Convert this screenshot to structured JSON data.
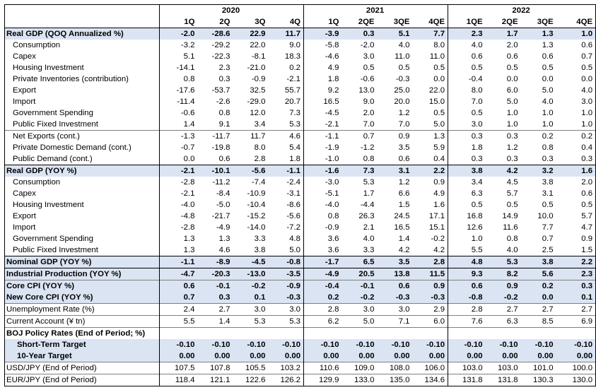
{
  "years": [
    "2020",
    "2021",
    "2022"
  ],
  "quarters": [
    [
      "1Q",
      "2Q",
      "3Q",
      "4Q"
    ],
    [
      "1Q",
      "2QE",
      "3QE",
      "4QE"
    ],
    [
      "1QE",
      "2QE",
      "3QE",
      "4QE"
    ]
  ],
  "groups": [
    {
      "id": "qoq",
      "rows": [
        {
          "label": "Real GDP (QOQ Annualized %)",
          "style": "bold-hl",
          "values": [
            "-2.0",
            "-28.6",
            "22.9",
            "11.7",
            "-3.9",
            "0.3",
            "5.1",
            "7.7",
            "2.3",
            "1.7",
            "1.3",
            "1.0"
          ]
        },
        {
          "label": "Consumption",
          "style": "indent",
          "values": [
            "-3.2",
            "-29.2",
            "22.0",
            "9.0",
            "-5.8",
            "-2.0",
            "4.0",
            "8.0",
            "4.0",
            "2.0",
            "1.3",
            "0.6"
          ]
        },
        {
          "label": "Capex",
          "style": "indent",
          "values": [
            "5.1",
            "-22.3",
            "-8.1",
            "18.3",
            "-4.6",
            "3.0",
            "11.0",
            "11.0",
            "0.6",
            "0.6",
            "0.6",
            "0.7"
          ]
        },
        {
          "label": "Housing Investment",
          "style": "indent",
          "values": [
            "-14.1",
            "2.3",
            "-21.0",
            "0.2",
            "4.9",
            "0.5",
            "0.5",
            "0.5",
            "0.5",
            "0.5",
            "0.5",
            "0.5"
          ]
        },
        {
          "label": "Private Inventories (contribution)",
          "style": "indent",
          "values": [
            "0.8",
            "0.3",
            "-0.9",
            "-2.1",
            "1.8",
            "-0.6",
            "-0.3",
            "0.0",
            "-0.4",
            "0.0",
            "0.0",
            "0.0"
          ]
        },
        {
          "label": "Export",
          "style": "indent",
          "values": [
            "-17.6",
            "-53.7",
            "32.5",
            "55.7",
            "9.2",
            "13.0",
            "25.0",
            "22.0",
            "8.0",
            "6.0",
            "5.0",
            "4.0"
          ]
        },
        {
          "label": "Import",
          "style": "indent",
          "values": [
            "-11.4",
            "-2.6",
            "-29.0",
            "20.7",
            "16.5",
            "9.0",
            "20.0",
            "15.0",
            "7.0",
            "5.0",
            "4.0",
            "3.0"
          ]
        },
        {
          "label": "Government Spending",
          "style": "indent",
          "values": [
            "-0.6",
            "0.8",
            "12.0",
            "7.3",
            "-4.5",
            "2.0",
            "1.2",
            "0.5",
            "0.5",
            "1.0",
            "1.0",
            "1.0"
          ]
        },
        {
          "label": "Public Fixed Investment",
          "style": "indent",
          "values": [
            "1.4",
            "9.1",
            "3.4",
            "5.3",
            "-2.1",
            "7.0",
            "7.0",
            "5.0",
            "3.0",
            "1.0",
            "1.0",
            "1.0"
          ]
        }
      ]
    },
    {
      "id": "contrib",
      "rows": [
        {
          "label": "Net Exports (cont.)",
          "style": "indent",
          "values": [
            "-1.3",
            "-11.7",
            "11.7",
            "4.6",
            "-1.1",
            "0.7",
            "0.9",
            "1.3",
            "0.3",
            "0.3",
            "0.2",
            "0.2"
          ]
        },
        {
          "label": "Private Domestic Demand (cont.)",
          "style": "indent",
          "values": [
            "-0.7",
            "-19.8",
            "8.0",
            "5.4",
            "-1.9",
            "-1.2",
            "3.5",
            "5.9",
            "1.8",
            "1.2",
            "0.8",
            "0.4"
          ]
        },
        {
          "label": "Public Demand (cont.)",
          "style": "indent",
          "values": [
            "0.0",
            "0.6",
            "2.8",
            "1.8",
            "-1.0",
            "0.8",
            "0.6",
            "0.4",
            "0.3",
            "0.3",
            "0.3",
            "0.3"
          ]
        }
      ]
    },
    {
      "id": "yoy",
      "rows": [
        {
          "label": "Real GDP (YOY %)",
          "style": "bold-hl",
          "values": [
            "-2.1",
            "-10.1",
            "-5.6",
            "-1.1",
            "-1.6",
            "7.3",
            "3.1",
            "2.2",
            "3.8",
            "4.2",
            "3.2",
            "1.6"
          ]
        },
        {
          "label": "Consumption",
          "style": "indent",
          "values": [
            "-2.8",
            "-11.2",
            "-7.4",
            "-2.4",
            "-3.0",
            "5.3",
            "1.2",
            "0.9",
            "3.4",
            "4.5",
            "3.8",
            "2.0"
          ]
        },
        {
          "label": "Capex",
          "style": "indent",
          "values": [
            "-2.1",
            "-8.4",
            "-10.9",
            "-3.1",
            "-5.1",
            "1.7",
            "6.6",
            "4.9",
            "6.3",
            "5.7",
            "3.1",
            "0.6"
          ]
        },
        {
          "label": "Housing Investment",
          "style": "indent",
          "values": [
            "-4.0",
            "-5.0",
            "-10.4",
            "-8.6",
            "-4.0",
            "-4.4",
            "1.5",
            "1.6",
            "0.5",
            "0.5",
            "0.5",
            "0.5"
          ]
        },
        {
          "label": "Export",
          "style": "indent",
          "values": [
            "-4.8",
            "-21.7",
            "-15.2",
            "-5.6",
            "0.8",
            "26.3",
            "24.5",
            "17.1",
            "16.8",
            "14.9",
            "10.0",
            "5.7"
          ]
        },
        {
          "label": "Import",
          "style": "indent",
          "values": [
            "-2.8",
            "-4.9",
            "-14.0",
            "-7.2",
            "-0.9",
            "2.1",
            "16.5",
            "15.1",
            "12.6",
            "11.6",
            "7.7",
            "4.7"
          ]
        },
        {
          "label": "Government Spending",
          "style": "indent",
          "values": [
            "1.3",
            "1.3",
            "3.3",
            "4.8",
            "3.6",
            "4.0",
            "1.4",
            "-0.2",
            "1.0",
            "0.8",
            "0.7",
            "0.9"
          ]
        },
        {
          "label": "Public Fixed Investment",
          "style": "indent",
          "values": [
            "1.3",
            "4.6",
            "3.8",
            "5.0",
            "3.6",
            "3.3",
            "4.2",
            "4.2",
            "5.5",
            "4.0",
            "2.5",
            "1.5"
          ]
        }
      ]
    },
    {
      "id": "nominal",
      "rows": [
        {
          "label": "Nominal GDP (YOY %)",
          "style": "bold-hl",
          "values": [
            "-1.1",
            "-8.9",
            "-4.5",
            "-0.8",
            "-1.7",
            "6.5",
            "3.5",
            "2.8",
            "4.8",
            "5.3",
            "3.8",
            "2.2"
          ]
        }
      ]
    },
    {
      "id": "ip",
      "rows": [
        {
          "label": "Industrial Production (YOY %)",
          "style": "bold-hl",
          "values": [
            "-4.7",
            "-20.3",
            "-13.0",
            "-3.5",
            "-4.9",
            "20.5",
            "13.8",
            "11.5",
            "9.3",
            "8.2",
            "5.6",
            "2.3"
          ]
        }
      ]
    },
    {
      "id": "cpi",
      "rows": [
        {
          "label": "Core CPI (YOY %)",
          "style": "bold-hl",
          "values": [
            "0.6",
            "-0.1",
            "-0.2",
            "-0.9",
            "-0.4",
            "-0.1",
            "0.6",
            "0.9",
            "0.6",
            "0.9",
            "0.2",
            "0.3"
          ]
        },
        {
          "label": "New Core CPI (YOY %)",
          "style": "bold-hl",
          "values": [
            "0.7",
            "0.3",
            "0.1",
            "-0.3",
            "0.2",
            "-0.2",
            "-0.3",
            "-0.3",
            "-0.8",
            "-0.2",
            "0.0",
            "0.1"
          ]
        }
      ]
    },
    {
      "id": "unemp",
      "rows": [
        {
          "label": "Unemployment Rate (%)",
          "style": "plain",
          "values": [
            "2.4",
            "2.7",
            "3.0",
            "3.0",
            "2.8",
            "3.0",
            "3.0",
            "2.9",
            "2.8",
            "2.7",
            "2.7",
            "2.7"
          ]
        }
      ]
    },
    {
      "id": "ca",
      "rows": [
        {
          "label": "Current Account (¥ tn)",
          "style": "plain",
          "values": [
            "5.5",
            "1.4",
            "5.3",
            "5.3",
            "6.2",
            "5.0",
            "7.1",
            "6.0",
            "7.6",
            "6.3",
            "8.5",
            "6.9"
          ]
        }
      ]
    },
    {
      "id": "boj",
      "rows": [
        {
          "label": "BOJ Policy Rates (End of Period; %)",
          "style": "bold-title",
          "values": [
            "",
            "",
            "",
            "",
            "",
            "",
            "",
            "",
            "",
            "",
            "",
            ""
          ]
        },
        {
          "label": "Short-Term Target",
          "style": "bold-hl-indent",
          "values": [
            "-0.10",
            "-0.10",
            "-0.10",
            "-0.10",
            "-0.10",
            "-0.10",
            "-0.10",
            "-0.10",
            "-0.10",
            "-0.10",
            "-0.10",
            "-0.10"
          ]
        },
        {
          "label": "10-Year Target",
          "style": "bold-hl-indent",
          "values": [
            "0.00",
            "0.00",
            "0.00",
            "0.00",
            "0.00",
            "0.00",
            "0.00",
            "0.00",
            "0.00",
            "0.00",
            "0.00",
            "0.00"
          ]
        }
      ]
    },
    {
      "id": "usd",
      "rows": [
        {
          "label": "USD/JPY (End of Period)",
          "style": "plain",
          "values": [
            "107.5",
            "107.8",
            "105.5",
            "103.2",
            "110.6",
            "109.0",
            "108.0",
            "106.0",
            "103.0",
            "103.0",
            "101.0",
            "100.0"
          ]
        }
      ]
    },
    {
      "id": "eur",
      "rows": [
        {
          "label": "EUR/JPY (End of Period)",
          "style": "plain",
          "values": [
            "118.4",
            "121.1",
            "122.6",
            "126.2",
            "129.9",
            "133.0",
            "135.0",
            "134.6",
            "131.8",
            "131.8",
            "130.3",
            "130.0"
          ]
        }
      ]
    }
  ]
}
